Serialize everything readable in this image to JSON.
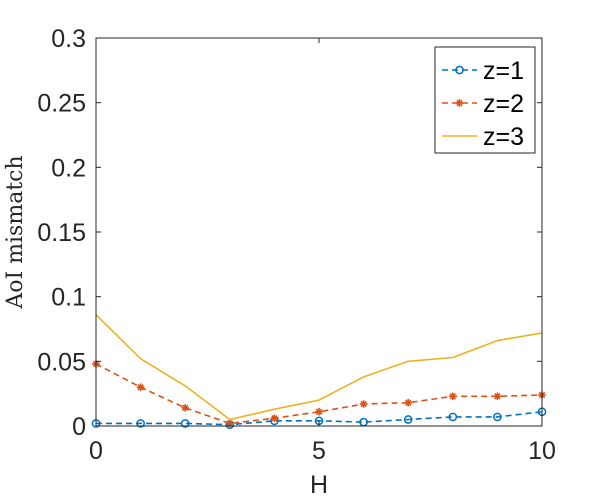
{
  "chart_data": {
    "type": "line",
    "title": "",
    "xlabel": "H",
    "ylabel": "AoI mismatch",
    "xlim": [
      0,
      10
    ],
    "ylim": [
      0,
      0.3
    ],
    "xticks": [
      "0",
      "5",
      "10"
    ],
    "yticks": [
      "0",
      "0.05",
      "0.1",
      "0.15",
      "0.2",
      "0.25",
      "0.3"
    ],
    "legend_position": "top-right",
    "grid": false,
    "x": [
      0,
      1,
      2,
      3,
      4,
      5,
      6,
      7,
      8,
      9,
      10
    ],
    "series": [
      {
        "name": "z=1",
        "values": [
          0.002,
          0.002,
          0.002,
          0.001,
          0.004,
          0.004,
          0.003,
          0.005,
          0.007,
          0.007,
          0.011
        ],
        "color": "#0072BD",
        "line_style": "dashed",
        "marker": "circle"
      },
      {
        "name": "z=2",
        "values": [
          0.048,
          0.03,
          0.014,
          0.002,
          0.006,
          0.011,
          0.017,
          0.018,
          0.023,
          0.023,
          0.024
        ],
        "color": "#D95319",
        "line_style": "dashed",
        "marker": "asterisk"
      },
      {
        "name": "z=3",
        "values": [
          0.086,
          0.052,
          0.031,
          0.005,
          0.013,
          0.02,
          0.038,
          0.05,
          0.053,
          0.066,
          0.072
        ],
        "color": "#EDB120",
        "line_style": "solid",
        "marker": "none"
      }
    ]
  }
}
